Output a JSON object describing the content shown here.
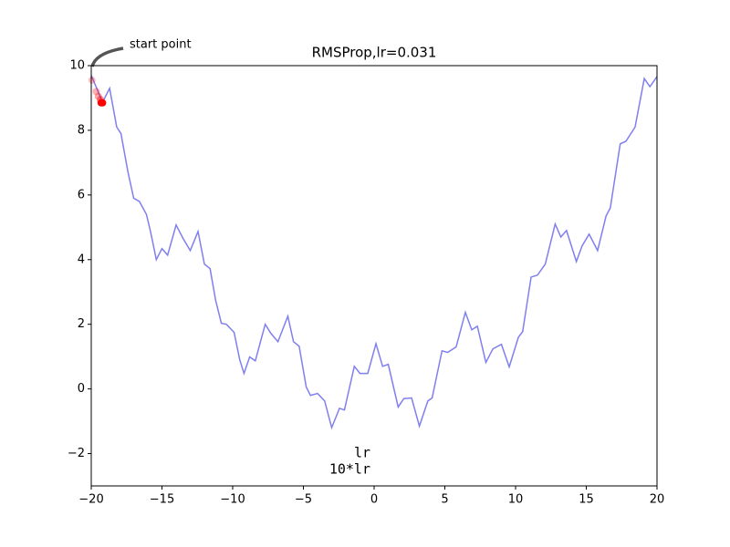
{
  "chart_data": {
    "type": "line",
    "title": "RMSProp,lr=0.031",
    "x": [
      -20,
      -19.2,
      -18.7,
      -18.2,
      -17.9,
      -17.4,
      -17.0,
      -16.6,
      -16.1,
      -15.8,
      -15.4,
      -15.0,
      -14.6,
      -14.0,
      -13.5,
      -13.0,
      -12.45,
      -12.0,
      -11.6,
      -11.2,
      -10.8,
      -10.45,
      -9.9,
      -9.5,
      -9.2,
      -8.8,
      -8.4,
      -7.7,
      -7.3,
      -6.8,
      -6.1,
      -5.7,
      -5.3,
      -4.8,
      -4.5,
      -4.0,
      -3.5,
      -3.0,
      -2.45,
      -2.1,
      -1.4,
      -1.0,
      -0.45,
      0.13,
      0.6,
      1.0,
      1.7,
      2.1,
      2.65,
      3.2,
      3.8,
      4.1,
      4.8,
      5.2,
      5.8,
      6.45,
      6.9,
      7.3,
      7.9,
      8.4,
      9.0,
      9.55,
      10.2,
      10.5,
      11.1,
      11.55,
      12.1,
      12.8,
      13.2,
      13.6,
      14.3,
      14.7,
      15.2,
      15.8,
      16.4,
      16.7,
      17.4,
      17.8,
      18.45,
      19.1,
      19.5,
      20
    ],
    "series": [
      {
        "color": "#7f7ff0",
        "values": [
          9.7,
          8.87,
          9.3,
          8.1,
          7.9,
          6.7,
          5.9,
          5.8,
          5.4,
          4.85,
          4.0,
          4.34,
          4.14,
          5.07,
          4.65,
          4.28,
          4.87,
          3.86,
          3.72,
          2.73,
          2.03,
          2.0,
          1.75,
          0.9,
          0.48,
          0.99,
          0.87,
          2.0,
          1.72,
          1.46,
          2.25,
          1.46,
          1.32,
          0.06,
          -0.2,
          -0.14,
          -0.37,
          -1.2,
          -0.6,
          -0.65,
          0.7,
          0.48,
          0.48,
          1.4,
          0.7,
          0.76,
          -0.56,
          -0.3,
          -0.28,
          -1.15,
          -0.37,
          -0.28,
          1.18,
          1.13,
          1.3,
          2.37,
          1.83,
          1.94,
          0.82,
          1.24,
          1.38,
          0.68,
          1.6,
          1.77,
          3.46,
          3.52,
          3.86,
          5.1,
          4.7,
          4.9,
          3.94,
          4.42,
          4.79,
          4.28,
          5.35,
          5.6,
          7.58,
          7.66,
          8.1,
          9.6,
          9.35,
          9.66
        ]
      }
    ],
    "points": {
      "color": "#ff0000",
      "x": [
        -19.95,
        -19.65,
        -19.5,
        -19.35,
        -19.3,
        -19.2
      ],
      "y": [
        9.55,
        9.2,
        9.05,
        8.95,
        8.85,
        8.85
      ],
      "alpha": [
        0.25,
        0.3,
        0.35,
        0.45,
        1,
        1
      ]
    },
    "annotation": {
      "text": "start point",
      "x": -20,
      "y": 10
    },
    "legend": [
      "lr",
      "10*lr"
    ],
    "xlim": [
      -20,
      20
    ],
    "ylim": [
      -3,
      10
    ],
    "xticks": [
      {
        "value": -20,
        "label": "−20"
      },
      {
        "value": -15,
        "label": "−15"
      },
      {
        "value": -10,
        "label": "−10"
      },
      {
        "value": -5,
        "label": "−5"
      },
      0,
      5,
      10,
      15,
      20
    ],
    "yticks": [
      {
        "value": -2,
        "label": "−2"
      },
      0,
      2,
      4,
      6,
      8,
      10
    ]
  }
}
